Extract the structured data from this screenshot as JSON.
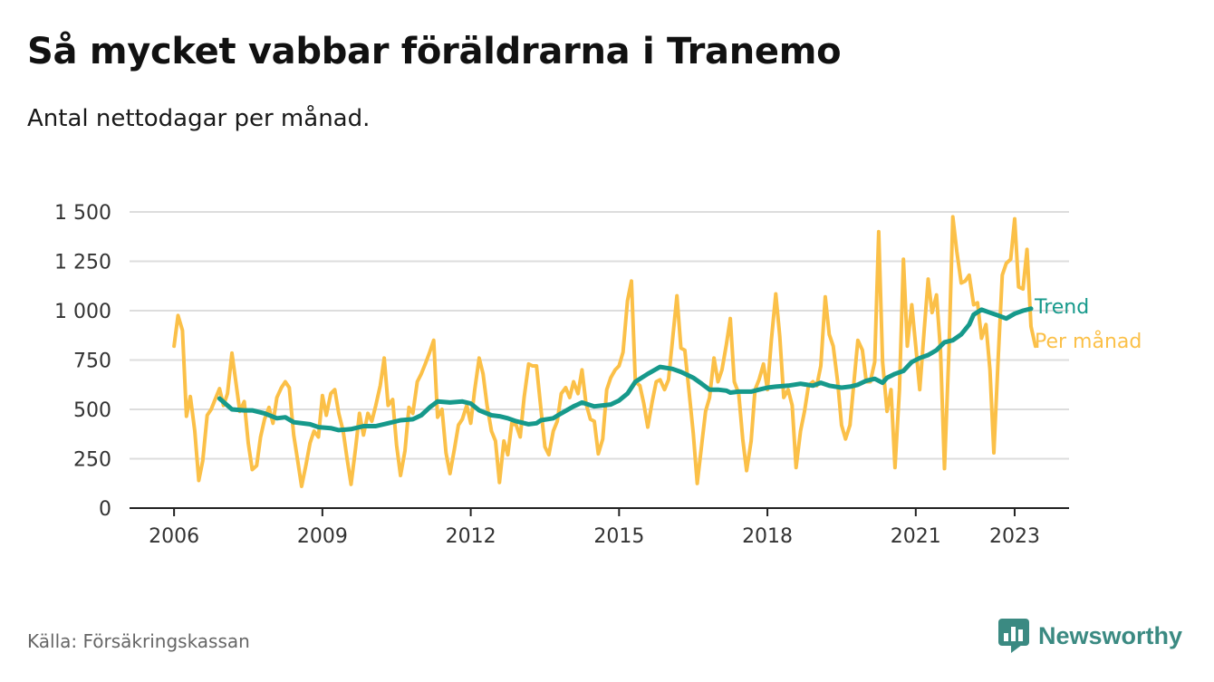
{
  "header": {
    "title": "Så mycket vabbar föräldrarna i Tranemo",
    "subtitle": "Antal nettodagar per månad."
  },
  "footer": {
    "source": "Källa: Försäkringskassan",
    "brand": "Newsworthy",
    "brand_icon": "newsworthy-logo-icon",
    "brand_color": "#3b8a82"
  },
  "chart_data": {
    "type": "line",
    "title": "Så mycket vabbar föräldrarna i Tranemo",
    "subtitle": "Antal nettodagar per månad.",
    "xlabel": "",
    "ylabel": "",
    "x_ticks": [
      2006,
      2009,
      2012,
      2015,
      2018,
      2021,
      2023
    ],
    "x_tick_labels": [
      "2006",
      "2009",
      "2012",
      "2015",
      "2018",
      "2021",
      "2023"
    ],
    "y_ticks": [
      0,
      250,
      500,
      750,
      1000,
      1250,
      1500
    ],
    "y_tick_labels": [
      "0",
      "250",
      "500",
      "750",
      "1 000",
      "1 250",
      "1 500"
    ],
    "xlim": [
      2005.1,
      2024.1
    ],
    "ylim": [
      0,
      1500
    ],
    "grid": "horizontal",
    "legend": "end-of-line labels, right",
    "series": [
      {
        "name": "Per månad",
        "color": "#fbc048",
        "points": [
          [
            2006.0,
            820
          ],
          [
            2006.08,
            975
          ],
          [
            2006.17,
            900
          ],
          [
            2006.25,
            465
          ],
          [
            2006.33,
            565
          ],
          [
            2006.42,
            390
          ],
          [
            2006.5,
            140
          ],
          [
            2006.58,
            240
          ],
          [
            2006.67,
            470
          ],
          [
            2006.75,
            500
          ],
          [
            2006.83,
            550
          ],
          [
            2006.92,
            605
          ],
          [
            2007.0,
            520
          ],
          [
            2007.08,
            580
          ],
          [
            2007.17,
            785
          ],
          [
            2007.25,
            640
          ],
          [
            2007.33,
            490
          ],
          [
            2007.42,
            540
          ],
          [
            2007.5,
            330
          ],
          [
            2007.58,
            195
          ],
          [
            2007.67,
            215
          ],
          [
            2007.75,
            360
          ],
          [
            2007.83,
            450
          ],
          [
            2007.92,
            510
          ],
          [
            2008.0,
            430
          ],
          [
            2008.08,
            560
          ],
          [
            2008.17,
            610
          ],
          [
            2008.25,
            640
          ],
          [
            2008.33,
            610
          ],
          [
            2008.42,
            370
          ],
          [
            2008.5,
            240
          ],
          [
            2008.58,
            110
          ],
          [
            2008.67,
            220
          ],
          [
            2008.75,
            330
          ],
          [
            2008.83,
            390
          ],
          [
            2008.92,
            360
          ],
          [
            2009.0,
            570
          ],
          [
            2009.08,
            470
          ],
          [
            2009.17,
            580
          ],
          [
            2009.25,
            600
          ],
          [
            2009.33,
            480
          ],
          [
            2009.42,
            390
          ],
          [
            2009.5,
            250
          ],
          [
            2009.58,
            120
          ],
          [
            2009.67,
            300
          ],
          [
            2009.75,
            480
          ],
          [
            2009.83,
            370
          ],
          [
            2009.92,
            480
          ],
          [
            2010.0,
            440
          ],
          [
            2010.08,
            520
          ],
          [
            2010.17,
            620
          ],
          [
            2010.25,
            760
          ],
          [
            2010.33,
            520
          ],
          [
            2010.42,
            550
          ],
          [
            2010.5,
            320
          ],
          [
            2010.58,
            165
          ],
          [
            2010.67,
            290
          ],
          [
            2010.75,
            510
          ],
          [
            2010.83,
            480
          ],
          [
            2010.92,
            640
          ],
          [
            2011.0,
            680
          ],
          [
            2011.08,
            730
          ],
          [
            2011.17,
            790
          ],
          [
            2011.25,
            850
          ],
          [
            2011.33,
            460
          ],
          [
            2011.42,
            500
          ],
          [
            2011.5,
            280
          ],
          [
            2011.58,
            175
          ],
          [
            2011.67,
            300
          ],
          [
            2011.75,
            420
          ],
          [
            2011.83,
            450
          ],
          [
            2011.92,
            520
          ],
          [
            2012.0,
            430
          ],
          [
            2012.08,
            600
          ],
          [
            2012.17,
            760
          ],
          [
            2012.25,
            680
          ],
          [
            2012.33,
            520
          ],
          [
            2012.42,
            390
          ],
          [
            2012.5,
            340
          ],
          [
            2012.58,
            130
          ],
          [
            2012.67,
            340
          ],
          [
            2012.75,
            270
          ],
          [
            2012.83,
            430
          ],
          [
            2012.92,
            420
          ],
          [
            2013.0,
            360
          ],
          [
            2013.08,
            560
          ],
          [
            2013.17,
            730
          ],
          [
            2013.25,
            720
          ],
          [
            2013.33,
            720
          ],
          [
            2013.42,
            500
          ],
          [
            2013.5,
            310
          ],
          [
            2013.58,
            270
          ],
          [
            2013.67,
            390
          ],
          [
            2013.75,
            440
          ],
          [
            2013.83,
            580
          ],
          [
            2013.92,
            610
          ],
          [
            2014.0,
            560
          ],
          [
            2014.08,
            640
          ],
          [
            2014.17,
            580
          ],
          [
            2014.25,
            700
          ],
          [
            2014.33,
            530
          ],
          [
            2014.42,
            450
          ],
          [
            2014.5,
            440
          ],
          [
            2014.58,
            275
          ],
          [
            2014.67,
            350
          ],
          [
            2014.75,
            600
          ],
          [
            2014.83,
            660
          ],
          [
            2014.92,
            700
          ],
          [
            2015.0,
            720
          ],
          [
            2015.08,
            790
          ],
          [
            2015.17,
            1050
          ],
          [
            2015.25,
            1150
          ],
          [
            2015.33,
            640
          ],
          [
            2015.42,
            620
          ],
          [
            2015.5,
            530
          ],
          [
            2015.58,
            410
          ],
          [
            2015.67,
            540
          ],
          [
            2015.75,
            640
          ],
          [
            2015.83,
            650
          ],
          [
            2015.92,
            600
          ],
          [
            2016.0,
            650
          ],
          [
            2016.08,
            850
          ],
          [
            2016.17,
            1075
          ],
          [
            2016.25,
            810
          ],
          [
            2016.33,
            800
          ],
          [
            2016.42,
            580
          ],
          [
            2016.5,
            380
          ],
          [
            2016.58,
            125
          ],
          [
            2016.67,
            320
          ],
          [
            2016.75,
            490
          ],
          [
            2016.83,
            560
          ],
          [
            2016.92,
            760
          ],
          [
            2017.0,
            640
          ],
          [
            2017.08,
            700
          ],
          [
            2017.17,
            830
          ],
          [
            2017.25,
            960
          ],
          [
            2017.33,
            640
          ],
          [
            2017.42,
            580
          ],
          [
            2017.5,
            350
          ],
          [
            2017.58,
            190
          ],
          [
            2017.67,
            340
          ],
          [
            2017.75,
            600
          ],
          [
            2017.83,
            650
          ],
          [
            2017.92,
            730
          ],
          [
            2018.0,
            600
          ],
          [
            2018.08,
            850
          ],
          [
            2018.17,
            1085
          ],
          [
            2018.25,
            870
          ],
          [
            2018.33,
            560
          ],
          [
            2018.42,
            600
          ],
          [
            2018.5,
            520
          ],
          [
            2018.58,
            205
          ],
          [
            2018.67,
            390
          ],
          [
            2018.75,
            490
          ],
          [
            2018.83,
            620
          ],
          [
            2018.92,
            640
          ],
          [
            2019.0,
            620
          ],
          [
            2019.08,
            720
          ],
          [
            2019.17,
            1070
          ],
          [
            2019.25,
            880
          ],
          [
            2019.33,
            820
          ],
          [
            2019.42,
            640
          ],
          [
            2019.5,
            420
          ],
          [
            2019.58,
            350
          ],
          [
            2019.67,
            420
          ],
          [
            2019.75,
            640
          ],
          [
            2019.83,
            850
          ],
          [
            2019.92,
            800
          ],
          [
            2020.0,
            640
          ],
          [
            2020.08,
            640
          ],
          [
            2020.17,
            740
          ],
          [
            2020.25,
            1400
          ],
          [
            2020.33,
            740
          ],
          [
            2020.42,
            490
          ],
          [
            2020.5,
            600
          ],
          [
            2020.58,
            205
          ],
          [
            2020.67,
            600
          ],
          [
            2020.75,
            1260
          ],
          [
            2020.83,
            820
          ],
          [
            2020.92,
            1030
          ],
          [
            2021.0,
            820
          ],
          [
            2021.08,
            600
          ],
          [
            2021.17,
            900
          ],
          [
            2021.25,
            1160
          ],
          [
            2021.33,
            990
          ],
          [
            2021.42,
            1080
          ],
          [
            2021.5,
            800
          ],
          [
            2021.58,
            200
          ],
          [
            2021.67,
            790
          ],
          [
            2021.75,
            1475
          ],
          [
            2021.83,
            1300
          ],
          [
            2021.92,
            1140
          ],
          [
            2022.0,
            1150
          ],
          [
            2022.08,
            1180
          ],
          [
            2022.17,
            1030
          ],
          [
            2022.25,
            1040
          ],
          [
            2022.33,
            860
          ],
          [
            2022.42,
            930
          ],
          [
            2022.5,
            700
          ],
          [
            2022.58,
            280
          ],
          [
            2022.67,
            780
          ],
          [
            2022.75,
            1180
          ],
          [
            2022.83,
            1240
          ],
          [
            2022.92,
            1260
          ],
          [
            2023.0,
            1465
          ],
          [
            2023.08,
            1120
          ],
          [
            2023.17,
            1110
          ],
          [
            2023.25,
            1310
          ],
          [
            2023.33,
            920
          ],
          [
            2023.42,
            820
          ]
        ]
      },
      {
        "name": "Trend",
        "color": "#16998b",
        "points": [
          [
            2006.92,
            555
          ],
          [
            2007.17,
            500
          ],
          [
            2007.42,
            495
          ],
          [
            2007.58,
            495
          ],
          [
            2007.83,
            480
          ],
          [
            2008.08,
            455
          ],
          [
            2008.25,
            460
          ],
          [
            2008.42,
            435
          ],
          [
            2008.75,
            425
          ],
          [
            2008.92,
            410
          ],
          [
            2009.17,
            405
          ],
          [
            2009.33,
            395
          ],
          [
            2009.58,
            400
          ],
          [
            2009.83,
            415
          ],
          [
            2010.08,
            415
          ],
          [
            2010.33,
            430
          ],
          [
            2010.58,
            445
          ],
          [
            2010.83,
            450
          ],
          [
            2011.0,
            470
          ],
          [
            2011.17,
            510
          ],
          [
            2011.33,
            540
          ],
          [
            2011.58,
            535
          ],
          [
            2011.83,
            540
          ],
          [
            2012.0,
            530
          ],
          [
            2012.17,
            495
          ],
          [
            2012.42,
            470
          ],
          [
            2012.58,
            465
          ],
          [
            2012.75,
            455
          ],
          [
            2012.92,
            440
          ],
          [
            2013.17,
            425
          ],
          [
            2013.33,
            430
          ],
          [
            2013.42,
            445
          ],
          [
            2013.67,
            455
          ],
          [
            2013.83,
            480
          ],
          [
            2014.08,
            515
          ],
          [
            2014.25,
            535
          ],
          [
            2014.5,
            515
          ],
          [
            2014.67,
            520
          ],
          [
            2014.83,
            525
          ],
          [
            2015.0,
            545
          ],
          [
            2015.17,
            580
          ],
          [
            2015.33,
            640
          ],
          [
            2015.58,
            680
          ],
          [
            2015.83,
            715
          ],
          [
            2016.08,
            705
          ],
          [
            2016.25,
            690
          ],
          [
            2016.5,
            660
          ],
          [
            2016.67,
            630
          ],
          [
            2016.83,
            600
          ],
          [
            2017.0,
            600
          ],
          [
            2017.17,
            595
          ],
          [
            2017.25,
            585
          ],
          [
            2017.42,
            590
          ],
          [
            2017.67,
            590
          ],
          [
            2017.83,
            600
          ],
          [
            2018.0,
            610
          ],
          [
            2018.17,
            615
          ],
          [
            2018.42,
            620
          ],
          [
            2018.67,
            630
          ],
          [
            2018.92,
            620
          ],
          [
            2019.08,
            635
          ],
          [
            2019.25,
            620
          ],
          [
            2019.5,
            610
          ],
          [
            2019.67,
            615
          ],
          [
            2019.83,
            625
          ],
          [
            2020.0,
            645
          ],
          [
            2020.17,
            655
          ],
          [
            2020.33,
            635
          ],
          [
            2020.42,
            660
          ],
          [
            2020.58,
            680
          ],
          [
            2020.75,
            695
          ],
          [
            2020.92,
            740
          ],
          [
            2021.08,
            760
          ],
          [
            2021.25,
            775
          ],
          [
            2021.42,
            800
          ],
          [
            2021.58,
            840
          ],
          [
            2021.75,
            850
          ],
          [
            2021.92,
            880
          ],
          [
            2022.08,
            930
          ],
          [
            2022.17,
            980
          ],
          [
            2022.33,
            1005
          ],
          [
            2022.5,
            990
          ],
          [
            2022.67,
            975
          ],
          [
            2022.83,
            960
          ],
          [
            2023.0,
            985
          ],
          [
            2023.17,
            1000
          ],
          [
            2023.33,
            1010
          ]
        ]
      }
    ]
  }
}
